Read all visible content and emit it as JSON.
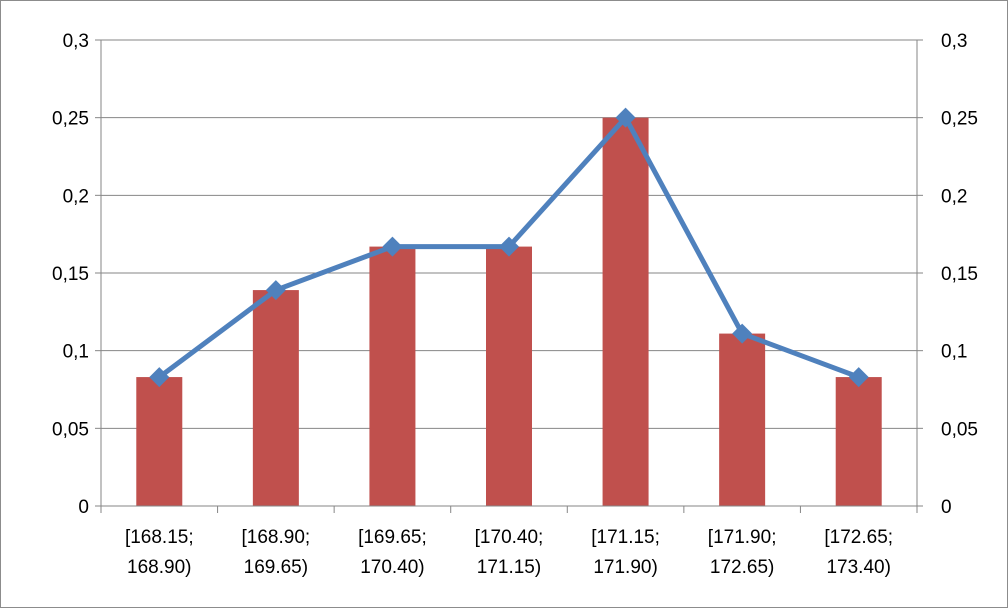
{
  "chart_data": {
    "type": "bar",
    "categories": [
      [
        "[168.15;",
        "168.90)"
      ],
      [
        "[168.90;",
        "169.65)"
      ],
      [
        "[169.65;",
        "170.40)"
      ],
      [
        "[170.40;",
        "171.15)"
      ],
      [
        "[171.15;",
        "171.90)"
      ],
      [
        "[171.90;",
        "172.65)"
      ],
      [
        "[172.65;",
        "173.40)"
      ]
    ],
    "series": [
      {
        "type": "bar",
        "values": [
          0.083,
          0.139,
          0.167,
          0.167,
          0.25,
          0.111,
          0.083
        ],
        "color": "#C0504D"
      },
      {
        "type": "line",
        "marker": "diamond",
        "values": [
          0.083,
          0.139,
          0.167,
          0.167,
          0.25,
          0.111,
          0.083
        ],
        "color": "#4F81BD"
      }
    ],
    "y_ticks": [
      "0",
      "0,05",
      "0,1",
      "0,15",
      "0,2",
      "0,25",
      "0,3"
    ],
    "y_tick_values": [
      0,
      0.05,
      0.1,
      0.15,
      0.2,
      0.25,
      0.3
    ],
    "ylim": [
      0,
      0.3
    ],
    "secondary_y_ticks": [
      "0",
      "0,05",
      "0,1",
      "0,15",
      "0,2",
      "0,25",
      "0,3"
    ],
    "grid": true,
    "legend": "none"
  }
}
